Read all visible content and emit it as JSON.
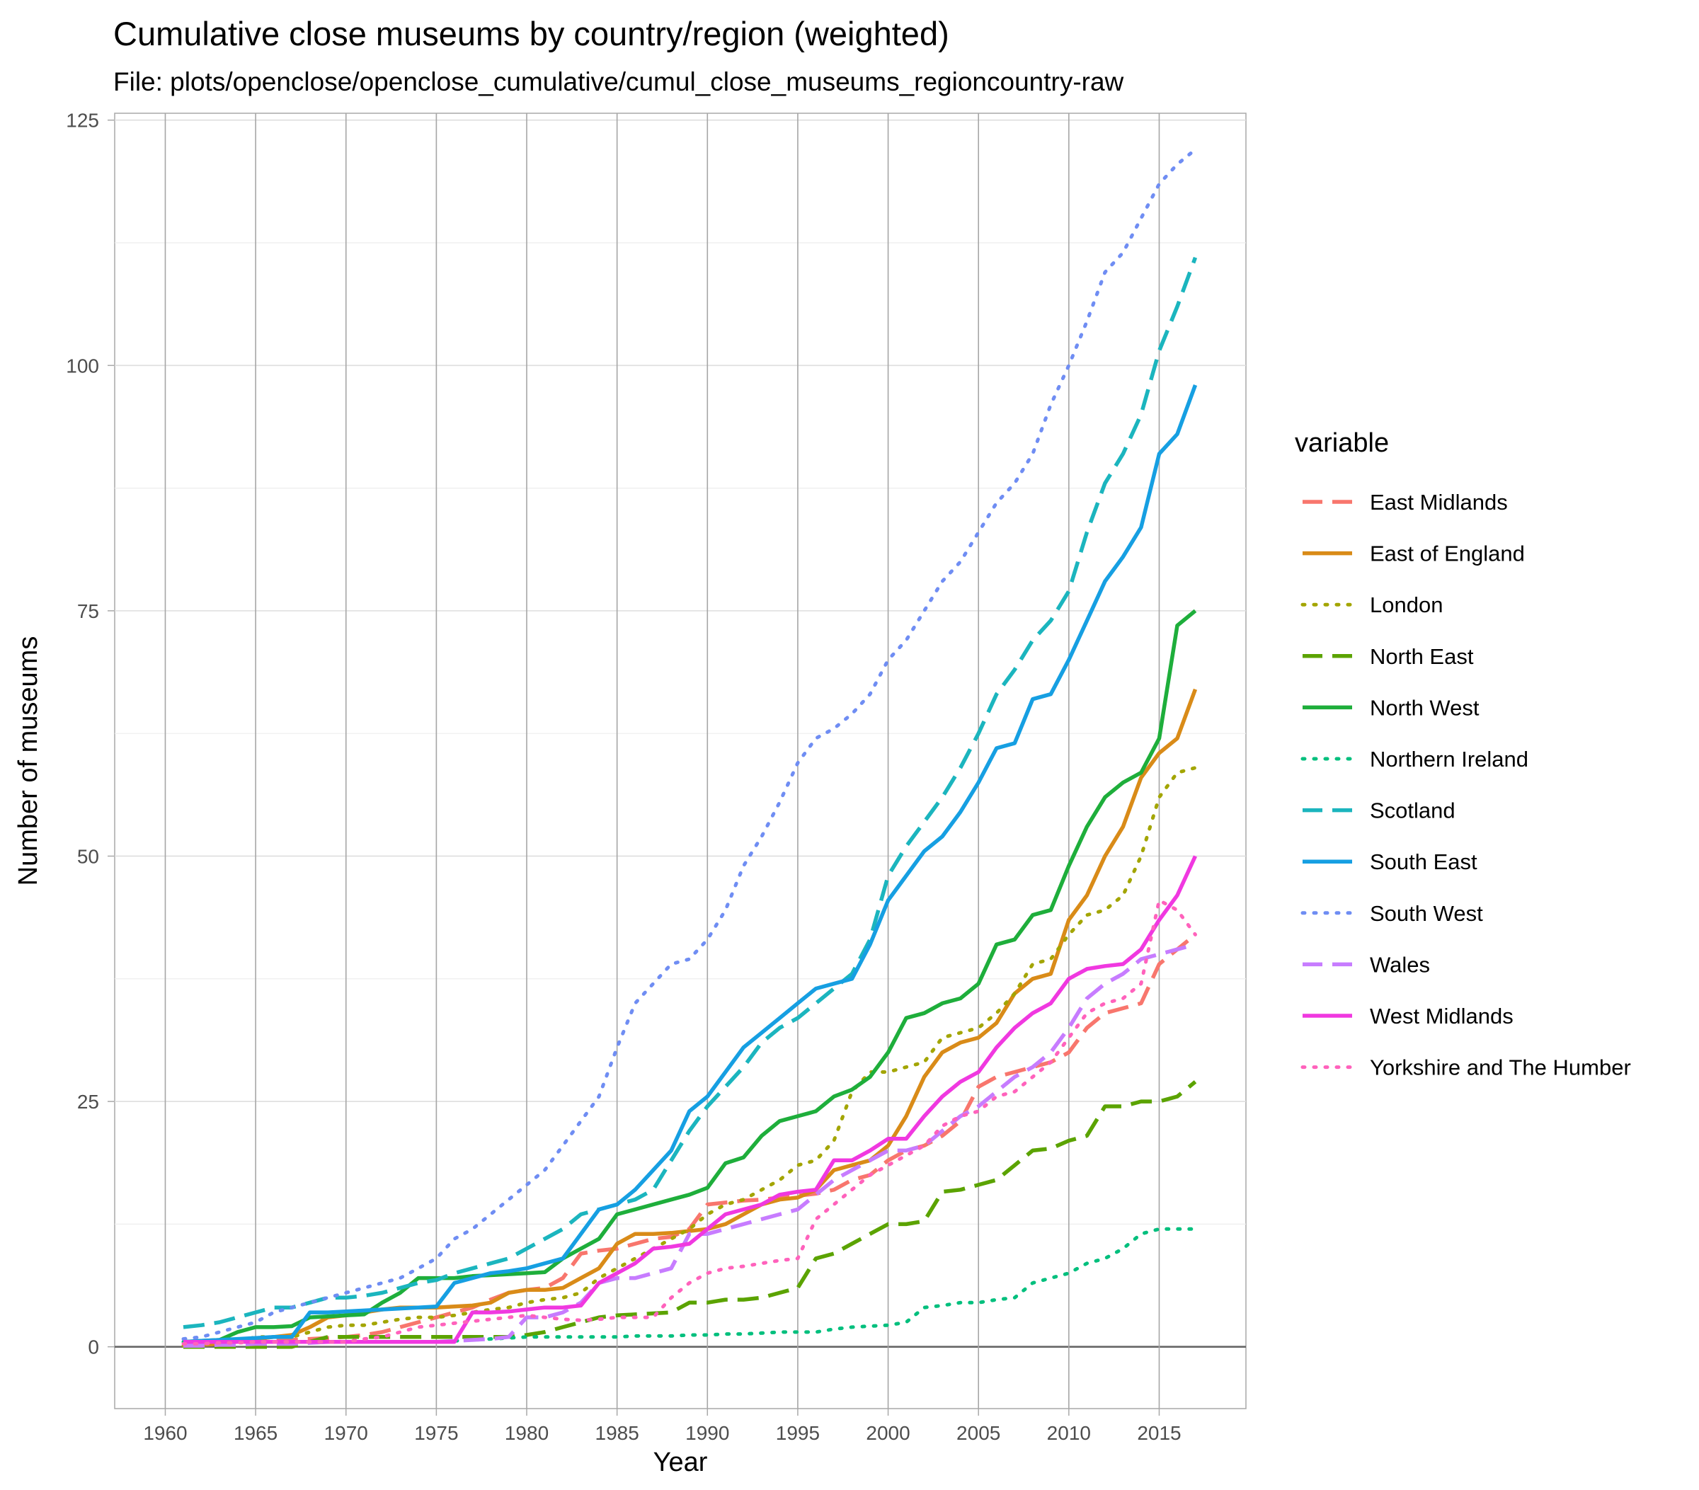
{
  "chart_data": {
    "type": "line",
    "title": "Cumulative close museums by country/region (weighted)",
    "subtitle": "File: plots/openclose/openclose_cumulative/cumul_close_museums_regioncountry-raw",
    "xlabel": "Year",
    "ylabel": "Number of museums",
    "xlim": [
      1957.2,
      2019.8
    ],
    "ylim": [
      -6.3,
      125.7
    ],
    "x_ticks": [
      "1960",
      "1965",
      "1970",
      "1975",
      "1980",
      "1985",
      "1990",
      "1995",
      "2000",
      "2005",
      "2010",
      "2015"
    ],
    "y_ticks": [
      "0",
      "25",
      "50",
      "75",
      "100",
      "125"
    ],
    "legend_title": "variable",
    "legend_position": "right",
    "grid": true,
    "x": [
      1961,
      1962,
      1963,
      1964,
      1965,
      1966,
      1967,
      1968,
      1969,
      1970,
      1971,
      1972,
      1973,
      1974,
      1975,
      1976,
      1977,
      1978,
      1979,
      1980,
      1981,
      1982,
      1983,
      1984,
      1985,
      1986,
      1987,
      1988,
      1989,
      1990,
      1991,
      1992,
      1993,
      1994,
      1995,
      1996,
      1997,
      1998,
      1999,
      2000,
      2001,
      2002,
      2003,
      2004,
      2005,
      2006,
      2007,
      2008,
      2009,
      2010,
      2011,
      2012,
      2013,
      2014,
      2015,
      2016,
      2017
    ],
    "series": [
      {
        "name": "East Midlands",
        "color": "#F8766D",
        "dash": "dashed",
        "values": [
          0.1,
          0.2,
          0.3,
          0.4,
          0.5,
          0.6,
          0.7,
          0.8,
          0.9,
          1.0,
          1.2,
          1.5,
          2.0,
          2.5,
          3.0,
          3.5,
          4.0,
          4.8,
          5.5,
          5.8,
          6.0,
          7.0,
          9.5,
          9.8,
          10.0,
          10.5,
          11.0,
          11.2,
          12.0,
          14.5,
          14.7,
          14.9,
          15.0,
          15.2,
          15.4,
          15.6,
          16.0,
          17.0,
          17.5,
          19.0,
          20.0,
          20.5,
          21.5,
          23.0,
          26.5,
          27.5,
          28.0,
          28.5,
          29.0,
          30.0,
          32.5,
          34.0,
          34.5,
          35.0,
          39.0,
          40.5,
          42.0
        ]
      },
      {
        "name": "East of England",
        "color": "#D98B18",
        "dash": "solid",
        "values": [
          0.1,
          0.2,
          0.3,
          0.5,
          0.8,
          1.0,
          1.2,
          2.0,
          3.0,
          3.2,
          3.5,
          3.8,
          4.0,
          4.0,
          4.0,
          4.1,
          4.2,
          4.5,
          5.5,
          5.8,
          5.8,
          6.0,
          7.0,
          8.0,
          10.5,
          11.5,
          11.5,
          11.6,
          11.8,
          12.0,
          12.5,
          13.5,
          14.5,
          15.0,
          15.2,
          16.0,
          18.0,
          18.5,
          19.0,
          20.5,
          23.5,
          27.5,
          30.0,
          31.0,
          31.5,
          33.0,
          36.0,
          37.5,
          38.0,
          43.5,
          46.0,
          50.0,
          53.0,
          58.0,
          60.5,
          62.0,
          67.0
        ]
      },
      {
        "name": "London",
        "color": "#A3A500",
        "dash": "dotted",
        "values": [
          0.1,
          0.2,
          0.5,
          0.5,
          1.0,
          1.0,
          1.0,
          1.5,
          2.0,
          2.2,
          2.2,
          2.5,
          2.8,
          3.0,
          3.0,
          3.2,
          3.5,
          3.8,
          4.0,
          4.5,
          4.8,
          5.0,
          5.5,
          7.0,
          8.0,
          9.0,
          10.0,
          11.0,
          12.0,
          13.5,
          14.5,
          15.0,
          16.0,
          17.0,
          18.5,
          19.0,
          21.0,
          26.0,
          28.0,
          28.0,
          28.5,
          29.0,
          31.5,
          32.0,
          32.5,
          34.0,
          36.0,
          39.0,
          39.5,
          42.0,
          44.0,
          44.5,
          46.0,
          50.0,
          56.0,
          58.5,
          59.0
        ]
      },
      {
        "name": "North East",
        "color": "#5BA300",
        "dash": "dashed",
        "values": [
          0.0,
          0.0,
          0.0,
          0.0,
          0.0,
          0.0,
          0.0,
          0.5,
          1.0,
          1.0,
          1.0,
          1.0,
          1.0,
          1.0,
          1.0,
          1.0,
          1.0,
          1.0,
          1.0,
          1.2,
          1.5,
          2.0,
          2.5,
          3.0,
          3.2,
          3.3,
          3.4,
          3.5,
          4.5,
          4.5,
          4.8,
          4.8,
          5.0,
          5.5,
          6.0,
          9.0,
          9.5,
          10.5,
          11.5,
          12.5,
          12.5,
          12.8,
          15.8,
          16.0,
          16.5,
          17.0,
          18.5,
          20.0,
          20.2,
          21.0,
          21.5,
          24.5,
          24.5,
          25.0,
          25.0,
          25.5,
          27.0
        ]
      },
      {
        "name": "North West",
        "color": "#1EAE3B",
        "dash": "solid",
        "values": [
          0.5,
          0.6,
          0.7,
          1.5,
          2.0,
          2.0,
          2.1,
          3.0,
          3.1,
          3.2,
          3.3,
          4.5,
          5.5,
          7.0,
          7.0,
          7.0,
          7.2,
          7.3,
          7.4,
          7.5,
          7.6,
          9.0,
          10.0,
          11.0,
          13.5,
          14.0,
          14.5,
          15.0,
          15.5,
          16.2,
          18.7,
          19.3,
          21.5,
          23.0,
          23.5,
          24.0,
          25.5,
          26.2,
          27.5,
          30.0,
          33.5,
          34.0,
          35.0,
          35.5,
          37.0,
          41.0,
          41.5,
          44.0,
          44.5,
          49.0,
          53.0,
          56.0,
          57.5,
          58.5,
          62.0,
          73.5,
          75.0
        ]
      },
      {
        "name": "Northern Ireland",
        "color": "#00BF7D",
        "dash": "dotted",
        "values": [
          0.5,
          0.5,
          0.5,
          0.5,
          0.5,
          0.5,
          0.5,
          0.5,
          0.5,
          0.5,
          0.5,
          0.5,
          0.5,
          0.5,
          0.5,
          0.6,
          0.7,
          0.8,
          0.9,
          1.0,
          1.0,
          1.0,
          1.0,
          1.0,
          1.0,
          1.1,
          1.1,
          1.1,
          1.2,
          1.2,
          1.3,
          1.3,
          1.4,
          1.5,
          1.5,
          1.5,
          1.8,
          2.0,
          2.1,
          2.2,
          2.5,
          4.0,
          4.2,
          4.5,
          4.5,
          4.8,
          5.0,
          6.5,
          7.0,
          7.5,
          8.5,
          9.0,
          10.0,
          11.5,
          12.0,
          12.0,
          12.0
        ]
      },
      {
        "name": "Scotland",
        "color": "#1BB5BE",
        "dash": "dashed",
        "values": [
          2.0,
          2.2,
          2.5,
          3.0,
          3.5,
          4.0,
          4.0,
          4.5,
          5.0,
          5.0,
          5.2,
          5.5,
          6.0,
          6.5,
          6.8,
          7.5,
          8.0,
          8.5,
          9.0,
          10.0,
          11.0,
          12.0,
          13.5,
          14.0,
          14.5,
          15.0,
          16.0,
          19.0,
          22.0,
          24.5,
          26.5,
          28.5,
          31.0,
          32.5,
          33.5,
          35.0,
          36.5,
          38.0,
          41.5,
          48.0,
          51.0,
          53.5,
          56.0,
          59.0,
          62.5,
          66.5,
          69.0,
          72.0,
          74.0,
          77.0,
          83.0,
          88.0,
          91.0,
          95.0,
          101.5,
          106.0,
          111.0
        ]
      },
      {
        "name": "South East",
        "color": "#169FE2",
        "dash": "solid",
        "values": [
          0.5,
          0.6,
          0.7,
          0.8,
          0.9,
          1.0,
          1.0,
          3.5,
          3.5,
          3.6,
          3.7,
          3.8,
          3.9,
          4.0,
          4.1,
          6.5,
          7.0,
          7.5,
          7.7,
          8.0,
          8.5,
          9.0,
          11.5,
          14.0,
          14.5,
          16.0,
          18.0,
          20.0,
          24.0,
          25.5,
          28.0,
          30.5,
          32.0,
          33.5,
          35.0,
          36.5,
          37.0,
          37.5,
          41.0,
          45.5,
          48.0,
          50.5,
          52.0,
          54.5,
          57.5,
          61.0,
          61.5,
          66.0,
          66.5,
          70.0,
          74.0,
          78.0,
          80.5,
          83.5,
          91.0,
          93.0,
          98.0
        ]
      },
      {
        "name": "South West",
        "color": "#6F8DF3",
        "dash": "dotted",
        "values": [
          0.8,
          1.0,
          1.5,
          2.0,
          2.5,
          3.5,
          4.0,
          4.5,
          5.0,
          5.5,
          6.0,
          6.5,
          7.0,
          8.0,
          9.0,
          11.0,
          12.0,
          13.5,
          15.0,
          16.5,
          18.0,
          20.5,
          23.0,
          25.5,
          30.5,
          35.0,
          37.0,
          39.0,
          39.5,
          41.5,
          44.5,
          49.0,
          52.0,
          55.5,
          59.5,
          62.0,
          63.0,
          64.5,
          66.5,
          70.0,
          72.0,
          75.0,
          78.0,
          80.0,
          83.0,
          86.0,
          88.0,
          91.0,
          96.0,
          100.0,
          104.5,
          109.5,
          111.5,
          115.0,
          118.5,
          120.5,
          122.0
        ]
      },
      {
        "name": "Wales",
        "color": "#C77CFF",
        "dash": "dashed",
        "values": [
          0.1,
          0.1,
          0.2,
          0.2,
          0.3,
          0.3,
          0.3,
          0.4,
          0.5,
          0.5,
          0.5,
          0.5,
          0.5,
          0.5,
          0.5,
          0.6,
          0.7,
          0.8,
          1.0,
          3.0,
          3.0,
          3.5,
          4.5,
          6.5,
          7.0,
          7.0,
          7.5,
          8.0,
          11.5,
          11.5,
          12.0,
          12.5,
          13.0,
          13.5,
          14.0,
          15.5,
          17.0,
          18.0,
          19.0,
          20.0,
          20.0,
          20.5,
          22.0,
          23.5,
          24.5,
          26.0,
          27.5,
          28.5,
          30.0,
          32.5,
          35.5,
          37.0,
          38.0,
          39.5,
          40.0,
          40.5,
          41.0
        ]
      },
      {
        "name": "West Midlands",
        "color": "#F038E0",
        "dash": "solid",
        "values": [
          0.5,
          0.5,
          0.5,
          0.5,
          0.5,
          0.5,
          0.5,
          0.5,
          0.5,
          0.5,
          0.5,
          0.5,
          0.5,
          0.5,
          0.5,
          0.5,
          3.5,
          3.5,
          3.6,
          3.8,
          4.0,
          4.0,
          4.2,
          6.5,
          7.5,
          8.5,
          10.0,
          10.2,
          10.5,
          12.0,
          13.5,
          14.0,
          14.5,
          15.5,
          15.8,
          16.0,
          19.0,
          19.0,
          20.0,
          21.2,
          21.2,
          23.5,
          25.5,
          27.0,
          28.0,
          30.5,
          32.5,
          34.0,
          35.0,
          37.5,
          38.5,
          38.8,
          39.0,
          40.5,
          43.5,
          46.0,
          50.0
        ]
      },
      {
        "name": "Yorkshire and The Humber",
        "color": "#FF62BC",
        "dash": "dotted",
        "values": [
          0.3,
          0.3,
          0.4,
          0.4,
          0.5,
          0.5,
          0.5,
          0.5,
          0.5,
          0.5,
          0.8,
          1.0,
          1.5,
          2.0,
          2.2,
          2.4,
          2.6,
          2.8,
          3.0,
          3.2,
          3.0,
          2.8,
          2.7,
          2.8,
          3.0,
          3.0,
          3.0,
          5.0,
          6.5,
          7.5,
          8.0,
          8.2,
          8.5,
          8.8,
          9.0,
          13.0,
          14.5,
          16.0,
          17.5,
          18.5,
          19.5,
          20.5,
          22.5,
          23.5,
          24.0,
          25.5,
          26.0,
          27.5,
          29.0,
          31.5,
          34.0,
          35.0,
          35.5,
          37.0,
          45.5,
          44.5,
          42.0
        ]
      }
    ]
  }
}
